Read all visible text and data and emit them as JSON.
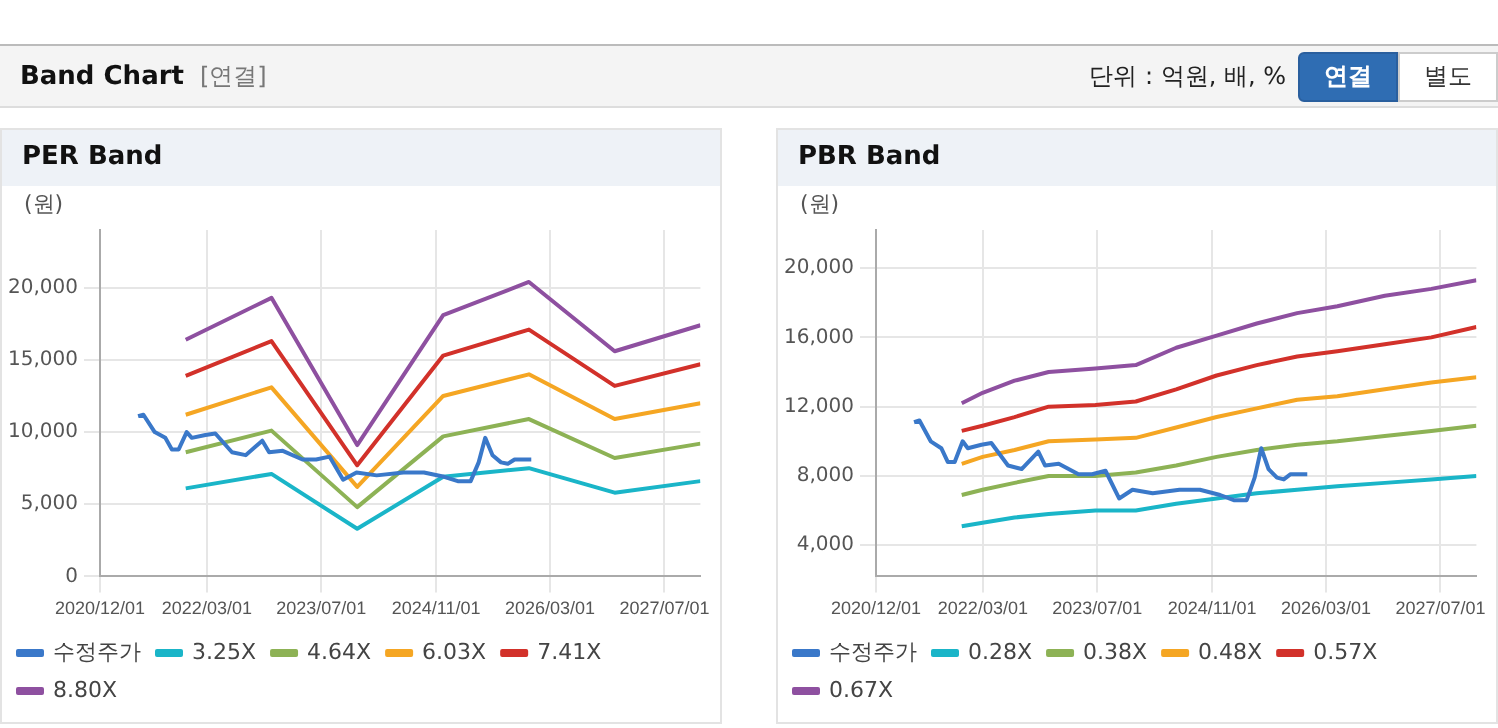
{
  "chart_data": [
    {
      "type": "line",
      "title": "PER Band",
      "ylabel": "(원)",
      "annotations": [
        "Band Chart",
        "[연결]",
        "단위 : 억원, 배, %",
        "연결",
        "별도"
      ],
      "grid": true,
      "legend": "bottom",
      "marker": "none",
      "line_style": "solid",
      "xlim": [
        "2020-12-01",
        "2027-12-01"
      ],
      "xticks": [
        {
          "value": "2020-12-01",
          "label": "2020/12/01"
        },
        {
          "value": "2022-03-01",
          "label": "2022/03/01"
        },
        {
          "value": "2023-07-01",
          "label": "2023/07/01"
        },
        {
          "value": "2024-11-01",
          "label": "2024/11/01"
        },
        {
          "value": "2026-03-01",
          "label": "2026/03/01"
        },
        {
          "value": "2027-07-01",
          "label": "2027/07/01"
        }
      ],
      "ylim": [
        0,
        24000
      ],
      "yticks": [
        {
          "value": 0,
          "label": "0"
        },
        {
          "value": 5000,
          "label": "5,000"
        },
        {
          "value": 10000,
          "label": "10,000"
        },
        {
          "value": 15000,
          "label": "15,000"
        },
        {
          "value": 20000,
          "label": "20,000"
        }
      ],
      "series": [
        {
          "name": "수정주가",
          "color": "#3a78c9",
          "x": [
            "2021-05-12",
            "2021-06-04",
            "2021-07-22",
            "2021-09-05",
            "2021-10-03",
            "2021-11-01",
            "2021-12-05",
            "2021-12-27",
            "2022-02-23",
            "2022-04-06",
            "2022-06-16",
            "2022-08-13",
            "2022-10-23",
            "2022-11-21",
            "2023-01-18",
            "2023-04-12",
            "2023-06-09",
            "2023-08-05",
            "2023-10-02",
            "2023-11-28",
            "2024-02-22",
            "2024-06-15",
            "2024-09-10",
            "2024-12-05",
            "2025-02-01",
            "2025-03-28",
            "2025-05-01",
            "2025-05-29",
            "2025-06-29",
            "2025-08-04",
            "2025-09-02",
            "2025-10-01",
            "2025-12-11"
          ],
          "values": [
            11100,
            11200,
            10000,
            9600,
            8800,
            8800,
            10000,
            9600,
            9800,
            9900,
            8600,
            8400,
            9400,
            8600,
            8700,
            8100,
            8100,
            8300,
            6700,
            7200,
            7000,
            7200,
            7200,
            6900,
            6600,
            6600,
            7900,
            9600,
            8400,
            7900,
            7800,
            8100,
            8100
          ]
        },
        {
          "name": "3.25X",
          "color": "#1ab5c8",
          "x": [
            "2021-12-01",
            "2022-12-01",
            "2023-12-01",
            "2024-12-01",
            "2025-12-01",
            "2026-12-01",
            "2027-12-01"
          ],
          "values": [
            6100,
            7100,
            3300,
            6900,
            7500,
            5800,
            6600
          ]
        },
        {
          "name": "4.64X",
          "color": "#8db255",
          "x": [
            "2021-12-01",
            "2022-12-01",
            "2023-12-01",
            "2024-12-01",
            "2025-12-01",
            "2026-12-01",
            "2027-12-01"
          ],
          "values": [
            8600,
            10100,
            4800,
            9700,
            10900,
            8200,
            9200
          ]
        },
        {
          "name": "6.03X",
          "color": "#f5a623",
          "x": [
            "2021-12-01",
            "2022-12-01",
            "2023-12-01",
            "2024-12-01",
            "2025-12-01",
            "2026-12-01",
            "2027-12-01"
          ],
          "values": [
            11200,
            13100,
            6200,
            12500,
            14000,
            10900,
            12000
          ]
        },
        {
          "name": "7.41X",
          "color": "#d2312a",
          "x": [
            "2021-12-01",
            "2022-12-01",
            "2023-12-01",
            "2024-12-01",
            "2025-12-01",
            "2026-12-01",
            "2027-12-01"
          ],
          "values": [
            13900,
            16300,
            7700,
            15300,
            17100,
            13200,
            14700
          ]
        },
        {
          "name": "8.80X",
          "color": "#8e50a0",
          "x": [
            "2021-12-01",
            "2022-12-01",
            "2023-12-01",
            "2024-12-01",
            "2025-12-01",
            "2026-12-01",
            "2027-12-01"
          ],
          "values": [
            16400,
            19300,
            9100,
            18100,
            20400,
            15600,
            17400
          ]
        }
      ]
    },
    {
      "type": "line",
      "title": "PBR Band",
      "ylabel": "(원)",
      "grid": true,
      "legend": "bottom",
      "marker": "none",
      "line_style": "solid",
      "xlim": [
        "2020-12-01",
        "2027-12-01"
      ],
      "xticks": [
        {
          "value": "2020-12-01",
          "label": "2020/12/01"
        },
        {
          "value": "2022-03-01",
          "label": "2022/03/01"
        },
        {
          "value": "2023-07-01",
          "label": "2023/07/01"
        },
        {
          "value": "2024-11-01",
          "label": "2024/11/01"
        },
        {
          "value": "2026-03-01",
          "label": "2026/03/01"
        },
        {
          "value": "2027-07-01",
          "label": "2027/07/01"
        }
      ],
      "ylim": [
        2200,
        22200
      ],
      "yticks": [
        {
          "value": 4000,
          "label": "4,000"
        },
        {
          "value": 8000,
          "label": "8,000"
        },
        {
          "value": 12000,
          "label": "12,000"
        },
        {
          "value": 16000,
          "label": "16,000"
        },
        {
          "value": 20000,
          "label": "20,000"
        }
      ],
      "series": [
        {
          "name": "수정주가",
          "color": "#3a78c9",
          "x": [
            "2021-05-12",
            "2021-06-04",
            "2021-07-22",
            "2021-09-05",
            "2021-10-03",
            "2021-11-01",
            "2021-12-05",
            "2021-12-27",
            "2022-02-23",
            "2022-04-06",
            "2022-06-16",
            "2022-08-13",
            "2022-10-23",
            "2022-11-21",
            "2023-01-18",
            "2023-04-12",
            "2023-06-09",
            "2023-08-05",
            "2023-10-02",
            "2023-11-28",
            "2024-02-22",
            "2024-06-15",
            "2024-09-10",
            "2024-12-05",
            "2025-02-01",
            "2025-03-28",
            "2025-05-01",
            "2025-05-29",
            "2025-06-29",
            "2025-08-04",
            "2025-09-02",
            "2025-10-01",
            "2025-12-11"
          ],
          "values": [
            11100,
            11200,
            10000,
            9600,
            8800,
            8800,
            10000,
            9600,
            9800,
            9900,
            8600,
            8400,
            9400,
            8600,
            8700,
            8100,
            8100,
            8300,
            6700,
            7200,
            7000,
            7200,
            7200,
            6900,
            6600,
            6600,
            7900,
            9600,
            8400,
            7900,
            7800,
            8100,
            8100
          ]
        },
        {
          "name": "0.28X",
          "color": "#1ab5c8",
          "x": [
            "2021-12-01",
            "2022-02-28",
            "2022-07-14",
            "2022-12-06",
            "2023-06-23",
            "2023-12-12",
            "2024-06-01",
            "2024-11-20",
            "2025-05-10",
            "2025-10-29",
            "2026-04-18",
            "2026-11-06",
            "2027-05-23",
            "2027-12-01"
          ],
          "values": [
            5100,
            5300,
            5600,
            5800,
            6000,
            6000,
            6400,
            6700,
            7000,
            7200,
            7400,
            7600,
            7800,
            8000
          ]
        },
        {
          "name": "0.38X",
          "color": "#8db255",
          "x": [
            "2021-12-01",
            "2022-02-28",
            "2022-07-14",
            "2022-12-06",
            "2023-06-23",
            "2023-12-12",
            "2024-06-01",
            "2024-11-20",
            "2025-05-10",
            "2025-10-29",
            "2026-04-18",
            "2026-11-06",
            "2027-05-23",
            "2027-12-01"
          ],
          "values": [
            6900,
            7200,
            7600,
            8000,
            8000,
            8200,
            8600,
            9100,
            9500,
            9800,
            10000,
            10300,
            10600,
            10900
          ]
        },
        {
          "name": "0.48X",
          "color": "#f5a623",
          "x": [
            "2021-12-01",
            "2022-02-28",
            "2022-07-14",
            "2022-12-06",
            "2023-06-23",
            "2023-12-12",
            "2024-06-01",
            "2024-11-20",
            "2025-05-10",
            "2025-10-29",
            "2026-04-18",
            "2026-11-06",
            "2027-05-23",
            "2027-12-01"
          ],
          "values": [
            8700,
            9100,
            9500,
            10000,
            10100,
            10200,
            10800,
            11400,
            11900,
            12400,
            12600,
            13000,
            13400,
            13700
          ]
        },
        {
          "name": "0.57X",
          "color": "#d2312a",
          "x": [
            "2021-12-01",
            "2022-02-28",
            "2022-07-14",
            "2022-12-06",
            "2023-06-23",
            "2023-12-12",
            "2024-06-01",
            "2024-11-20",
            "2025-05-10",
            "2025-10-29",
            "2026-04-18",
            "2026-11-06",
            "2027-05-23",
            "2027-12-01"
          ],
          "values": [
            10600,
            10900,
            11400,
            12000,
            12100,
            12300,
            13000,
            13800,
            14400,
            14900,
            15200,
            15600,
            16000,
            16600
          ]
        },
        {
          "name": "0.67X",
          "color": "#8e50a0",
          "x": [
            "2021-12-01",
            "2022-02-28",
            "2022-07-14",
            "2022-12-06",
            "2023-06-23",
            "2023-12-12",
            "2024-06-01",
            "2024-11-20",
            "2025-05-10",
            "2025-10-29",
            "2026-04-18",
            "2026-11-06",
            "2027-05-23",
            "2027-12-01"
          ],
          "values": [
            12200,
            12800,
            13500,
            14000,
            14200,
            14400,
            15400,
            16100,
            16800,
            17400,
            17800,
            18400,
            18800,
            19300
          ]
        }
      ]
    }
  ]
}
